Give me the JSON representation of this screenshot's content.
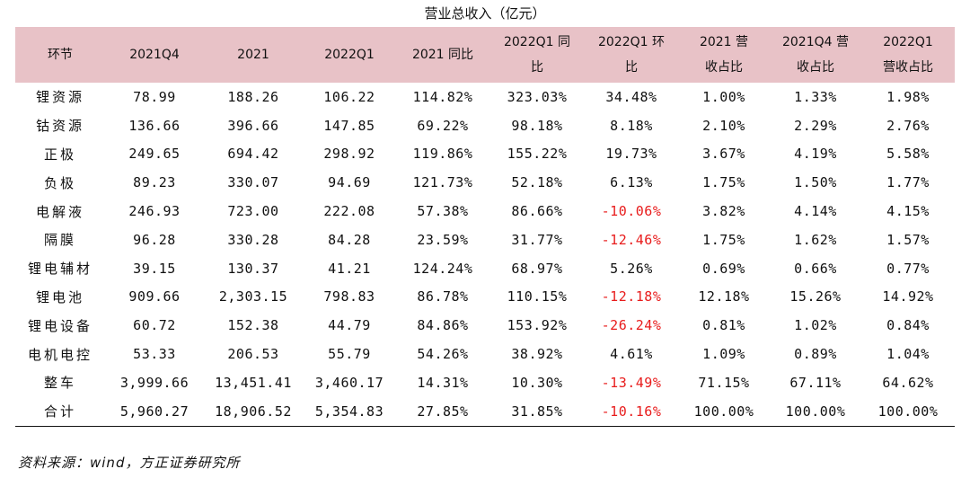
{
  "title": "营业总收入（亿元）",
  "header": [
    {
      "lines": [
        "环节"
      ]
    },
    {
      "lines": [
        "2021Q4"
      ]
    },
    {
      "lines": [
        "2021"
      ]
    },
    {
      "lines": [
        "2022Q1"
      ]
    },
    {
      "lines": [
        "2021 同比"
      ]
    },
    {
      "lines": [
        "2022Q1 同",
        "比"
      ]
    },
    {
      "lines": [
        "2022Q1 环",
        "比"
      ]
    },
    {
      "lines": [
        "2021 营",
        "收占比"
      ]
    },
    {
      "lines": [
        "2021Q4 营",
        "收占比"
      ]
    },
    {
      "lines": [
        "2022Q1",
        "营收占比"
      ]
    }
  ],
  "rows": [
    {
      "label": "锂资源",
      "q4_2021": "78.99",
      "y2021": "188.26",
      "q1_2022": "106.22",
      "yoy_2021": "114.82%",
      "yoy_q1": "323.03%",
      "qoq_q1": "34.48%",
      "share_2021": "1.00%",
      "share_q4": "1.33%",
      "share_q1": "1.98%"
    },
    {
      "label": "钴资源",
      "q4_2021": "136.66",
      "y2021": "396.66",
      "q1_2022": "147.85",
      "yoy_2021": "69.22%",
      "yoy_q1": "98.18%",
      "qoq_q1": "8.18%",
      "share_2021": "2.10%",
      "share_q4": "2.29%",
      "share_q1": "2.76%"
    },
    {
      "label": "正极",
      "q4_2021": "249.65",
      "y2021": "694.42",
      "q1_2022": "298.92",
      "yoy_2021": "119.86%",
      "yoy_q1": "155.22%",
      "qoq_q1": "19.73%",
      "share_2021": "3.67%",
      "share_q4": "4.19%",
      "share_q1": "5.58%"
    },
    {
      "label": "负极",
      "q4_2021": "89.23",
      "y2021": "330.07",
      "q1_2022": "94.69",
      "yoy_2021": "121.73%",
      "yoy_q1": "52.18%",
      "qoq_q1": "6.13%",
      "share_2021": "1.75%",
      "share_q4": "1.50%",
      "share_q1": "1.77%"
    },
    {
      "label": "电解液",
      "q4_2021": "246.93",
      "y2021": "723.00",
      "q1_2022": "222.08",
      "yoy_2021": "57.38%",
      "yoy_q1": "86.66%",
      "qoq_q1": "-10.06%",
      "share_2021": "3.82%",
      "share_q4": "4.14%",
      "share_q1": "4.15%"
    },
    {
      "label": "隔膜",
      "q4_2021": "96.28",
      "y2021": "330.28",
      "q1_2022": "84.28",
      "yoy_2021": "23.59%",
      "yoy_q1": "31.77%",
      "qoq_q1": "-12.46%",
      "share_2021": "1.75%",
      "share_q4": "1.62%",
      "share_q1": "1.57%"
    },
    {
      "label": "锂电辅材",
      "q4_2021": "39.15",
      "y2021": "130.37",
      "q1_2022": "41.21",
      "yoy_2021": "124.24%",
      "yoy_q1": "68.97%",
      "qoq_q1": "5.26%",
      "share_2021": "0.69%",
      "share_q4": "0.66%",
      "share_q1": "0.77%"
    },
    {
      "label": "锂电池",
      "q4_2021": "909.66",
      "y2021": "2,303.15",
      "q1_2022": "798.83",
      "yoy_2021": "86.78%",
      "yoy_q1": "110.15%",
      "qoq_q1": "-12.18%",
      "share_2021": "12.18%",
      "share_q4": "15.26%",
      "share_q1": "14.92%"
    },
    {
      "label": "锂电设备",
      "q4_2021": "60.72",
      "y2021": "152.38",
      "q1_2022": "44.79",
      "yoy_2021": "84.86%",
      "yoy_q1": "153.92%",
      "qoq_q1": "-26.24%",
      "share_2021": "0.81%",
      "share_q4": "1.02%",
      "share_q1": "0.84%"
    },
    {
      "label": "电机电控",
      "q4_2021": "53.33",
      "y2021": "206.53",
      "q1_2022": "55.79",
      "yoy_2021": "54.26%",
      "yoy_q1": "38.92%",
      "qoq_q1": "4.61%",
      "share_2021": "1.09%",
      "share_q4": "0.89%",
      "share_q1": "1.04%"
    },
    {
      "label": "整车",
      "q4_2021": "3,999.66",
      "y2021": "13,451.41",
      "q1_2022": "3,460.17",
      "yoy_2021": "14.31%",
      "yoy_q1": "10.30%",
      "qoq_q1": "-13.49%",
      "share_2021": "71.15%",
      "share_q4": "67.11%",
      "share_q1": "64.62%"
    },
    {
      "label": "合计",
      "q4_2021": "5,960.27",
      "y2021": "18,906.52",
      "q1_2022": "5,354.83",
      "yoy_2021": "27.85%",
      "yoy_q1": "31.85%",
      "qoq_q1": "-10.16%",
      "share_2021": "100.00%",
      "share_q4": "100.00%",
      "share_q1": "100.00%"
    }
  ],
  "source_note": "资料来源：wind，方正证券研究所",
  "colors": {
    "header_bg": "#e8c2c7",
    "negative": "#e81c1c"
  }
}
